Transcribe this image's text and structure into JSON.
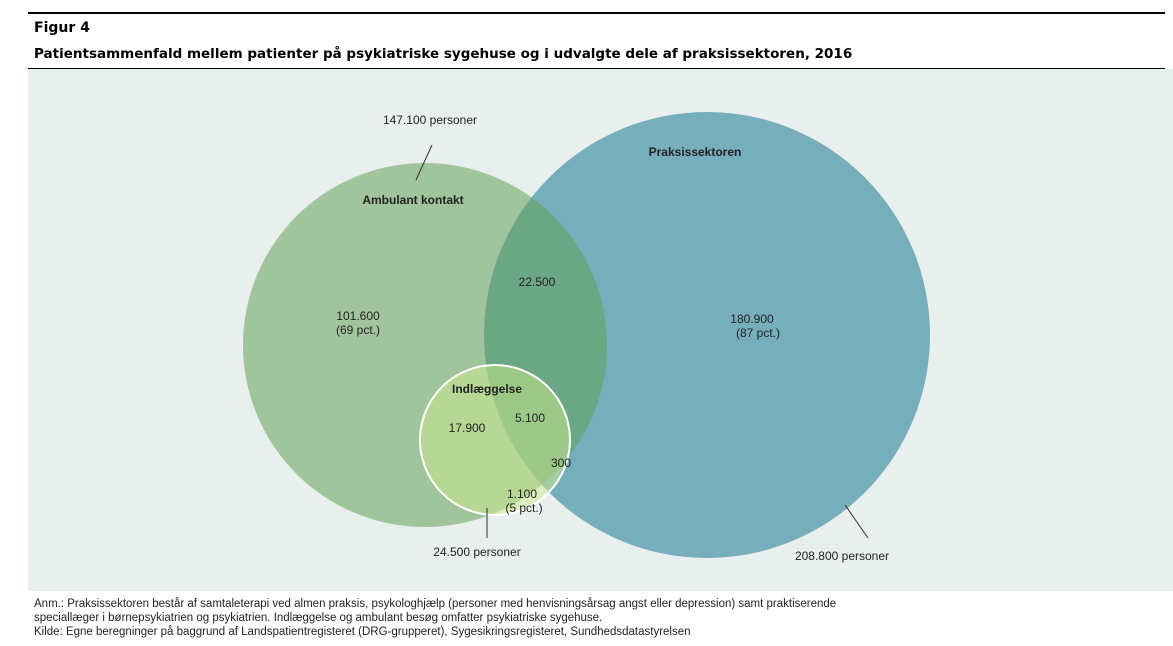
{
  "header": {
    "figure": "Figur 4",
    "title": "Patientsammenfald mellem patienter på psykiatriske sygehuse og i udvalgte dele af praksissektoren, 2016"
  },
  "sets": {
    "ambulant": {
      "name": "Ambulant kontakt",
      "total": "147.100 personer"
    },
    "praksis": {
      "name": "Praksissektoren",
      "total": "208.800 personer"
    },
    "indlaeggelse": {
      "name": "Indlæggelse",
      "total": "24.500 personer"
    }
  },
  "regions": {
    "ambulant_only": {
      "value": "101.600",
      "share": "(69 pct.)"
    },
    "ambulant_praksis": {
      "value": "22.500"
    },
    "praksis_only": {
      "value": "180.900",
      "share": "(87 pct.)"
    },
    "indlaeggelse_ambulant": {
      "value": "17.900"
    },
    "all_three": {
      "value": "5.100"
    },
    "indlaeggelse_praksis": {
      "value": "300"
    },
    "indlaeggelse_only": {
      "value": "1.100",
      "share": "(5 pct.)"
    }
  },
  "notes": [
    "Anm.: Praksissektoren består af samtaleterapi ved almen praksis, psykologhjælp (personer med henvisningsårsag angst eller depression) samt praktiserende",
    "speciallæger i børnepsykiatrien og psykiatrien. Indlæggelse og ambulant besøg omfatter psykiatriske sygehuse.",
    "Kilde: Egne beregninger på baggrund af Landspatientregisteret (DRG-grupperet), Sygesikringsregisteret, Sundhedsdatastyrelsen"
  ]
}
